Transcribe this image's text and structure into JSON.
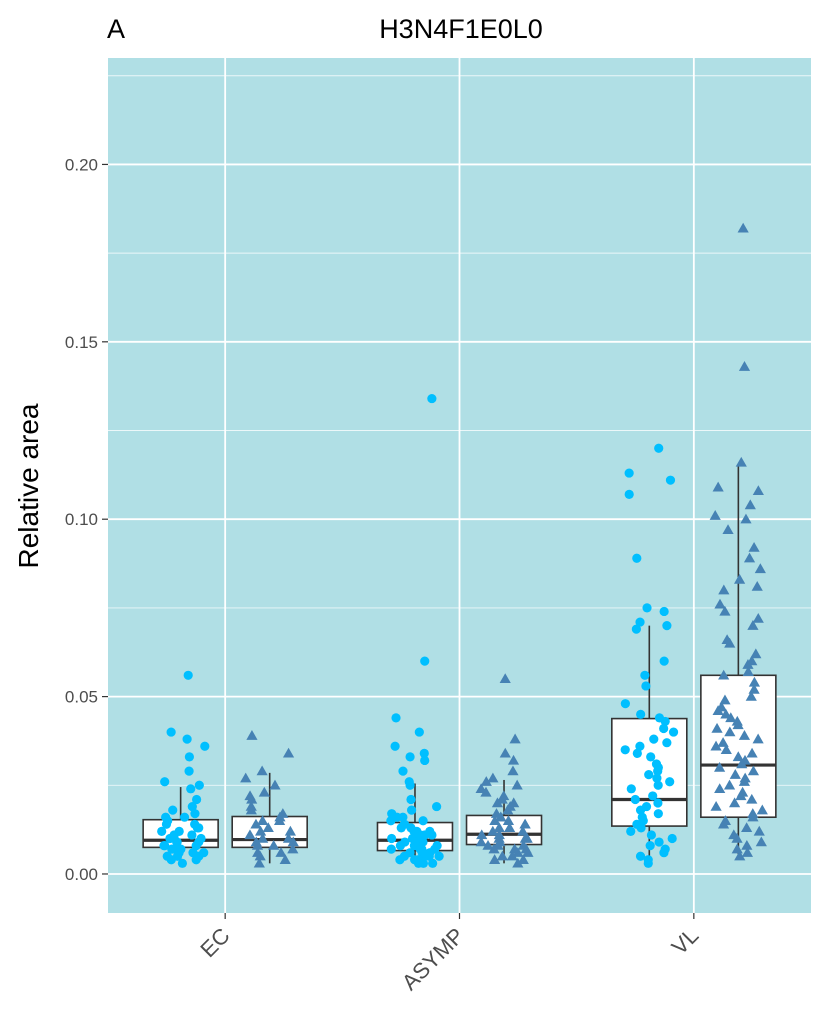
{
  "chart_data": {
    "type": "box-strip",
    "panel_tag": "A",
    "title": "H3N4F1E0L0",
    "xlabel": "",
    "ylabel": "Relative area",
    "categories": [
      "EC",
      "ASYMP",
      "VL"
    ],
    "ylim": [
      -0.011,
      0.23
    ],
    "yticks": [
      0.0,
      0.05,
      0.1,
      0.15,
      0.2
    ],
    "ytick_labels": [
      "0.00",
      "0.05",
      "0.10",
      "0.15",
      "0.20"
    ],
    "grid": true,
    "panel_background": "#b0dfe5",
    "box_stroke": "#333333",
    "series": [
      {
        "marker": "circle",
        "color": "#00bfff",
        "boxes": [
          {
            "category": "EC",
            "q1": 0.0075,
            "median": 0.0095,
            "q3": 0.0153,
            "whisker_low": 0.0028,
            "whisker_high": 0.0245
          },
          {
            "category": "ASYMP",
            "q1": 0.0066,
            "median": 0.0095,
            "q3": 0.0145,
            "whisker_low": 0.0028,
            "whisker_high": 0.0255
          },
          {
            "category": "VL",
            "q1": 0.0135,
            "median": 0.021,
            "q3": 0.0438,
            "whisker_low": 0.0028,
            "whisker_high": 0.07
          }
        ],
        "points": [
          {
            "category": "EC",
            "values": [
              0.056,
              0.04,
              0.038,
              0.036,
              0.033,
              0.029,
              0.026,
              0.025,
              0.024,
              0.021,
              0.019,
              0.018,
              0.017,
              0.016,
              0.016,
              0.015,
              0.014,
              0.014,
              0.013,
              0.013,
              0.012,
              0.012,
              0.011,
              0.011,
              0.01,
              0.01,
              0.01,
              0.009,
              0.009,
              0.009,
              0.008,
              0.008,
              0.008,
              0.007,
              0.007,
              0.007,
              0.006,
              0.006,
              0.006,
              0.005,
              0.005,
              0.005,
              0.004,
              0.004,
              0.003
            ]
          },
          {
            "category": "ASYMP",
            "values": [
              0.134,
              0.06,
              0.044,
              0.04,
              0.036,
              0.034,
              0.033,
              0.032,
              0.029,
              0.026,
              0.025,
              0.021,
              0.019,
              0.018,
              0.017,
              0.016,
              0.016,
              0.015,
              0.015,
              0.014,
              0.014,
              0.013,
              0.013,
              0.012,
              0.012,
              0.012,
              0.011,
              0.011,
              0.011,
              0.01,
              0.01,
              0.01,
              0.009,
              0.009,
              0.009,
              0.008,
              0.008,
              0.008,
              0.008,
              0.007,
              0.007,
              0.007,
              0.007,
              0.006,
              0.006,
              0.006,
              0.005,
              0.005,
              0.005,
              0.005,
              0.004,
              0.004,
              0.004,
              0.003,
              0.003,
              0.003
            ]
          },
          {
            "category": "VL",
            "values": [
              0.12,
              0.113,
              0.111,
              0.107,
              0.089,
              0.075,
              0.074,
              0.071,
              0.07,
              0.069,
              0.06,
              0.056,
              0.053,
              0.048,
              0.045,
              0.044,
              0.043,
              0.041,
              0.04,
              0.038,
              0.037,
              0.036,
              0.035,
              0.034,
              0.033,
              0.031,
              0.03,
              0.029,
              0.028,
              0.027,
              0.026,
              0.025,
              0.024,
              0.022,
              0.021,
              0.02,
              0.019,
              0.018,
              0.017,
              0.016,
              0.015,
              0.014,
              0.013,
              0.012,
              0.011,
              0.01,
              0.009,
              0.008,
              0.007,
              0.006,
              0.005,
              0.004,
              0.003
            ]
          }
        ]
      },
      {
        "marker": "triangle",
        "color": "#4682b4",
        "boxes": [
          {
            "category": "EC",
            "q1": 0.0075,
            "median": 0.0097,
            "q3": 0.0162,
            "whisker_low": 0.003,
            "whisker_high": 0.0285
          },
          {
            "category": "ASYMP",
            "q1": 0.0083,
            "median": 0.0112,
            "q3": 0.0165,
            "whisker_low": 0.003,
            "whisker_high": 0.0265
          },
          {
            "category": "VL",
            "q1": 0.016,
            "median": 0.0307,
            "q3": 0.056,
            "whisker_low": 0.004,
            "whisker_high": 0.115
          }
        ],
        "points": [
          {
            "category": "EC",
            "values": [
              0.039,
              0.034,
              0.029,
              0.027,
              0.025,
              0.023,
              0.022,
              0.021,
              0.019,
              0.018,
              0.017,
              0.016,
              0.015,
              0.015,
              0.014,
              0.013,
              0.012,
              0.012,
              0.011,
              0.01,
              0.01,
              0.009,
              0.009,
              0.008,
              0.008,
              0.007,
              0.006,
              0.006,
              0.005,
              0.004,
              0.003
            ]
          },
          {
            "category": "ASYMP",
            "values": [
              0.055,
              0.038,
              0.034,
              0.032,
              0.029,
              0.027,
              0.026,
              0.025,
              0.024,
              0.023,
              0.022,
              0.021,
              0.02,
              0.02,
              0.019,
              0.018,
              0.017,
              0.016,
              0.016,
              0.015,
              0.015,
              0.014,
              0.014,
              0.013,
              0.013,
              0.012,
              0.012,
              0.011,
              0.011,
              0.01,
              0.01,
              0.01,
              0.009,
              0.009,
              0.008,
              0.008,
              0.008,
              0.007,
              0.007,
              0.007,
              0.006,
              0.006,
              0.005,
              0.005,
              0.004,
              0.004,
              0.003
            ]
          },
          {
            "category": "VL",
            "values": [
              0.182,
              0.143,
              0.116,
              0.109,
              0.108,
              0.104,
              0.101,
              0.1,
              0.097,
              0.092,
              0.089,
              0.086,
              0.083,
              0.081,
              0.08,
              0.076,
              0.074,
              0.072,
              0.07,
              0.066,
              0.065,
              0.062,
              0.06,
              0.059,
              0.057,
              0.056,
              0.054,
              0.052,
              0.05,
              0.049,
              0.047,
              0.046,
              0.045,
              0.044,
              0.043,
              0.042,
              0.041,
              0.04,
              0.039,
              0.038,
              0.037,
              0.036,
              0.035,
              0.034,
              0.033,
              0.032,
              0.031,
              0.03,
              0.029,
              0.028,
              0.027,
              0.026,
              0.025,
              0.024,
              0.023,
              0.022,
              0.021,
              0.02,
              0.019,
              0.018,
              0.017,
              0.016,
              0.015,
              0.014,
              0.013,
              0.012,
              0.011,
              0.01,
              0.009,
              0.008,
              0.007,
              0.006,
              0.005
            ]
          }
        ]
      }
    ]
  }
}
